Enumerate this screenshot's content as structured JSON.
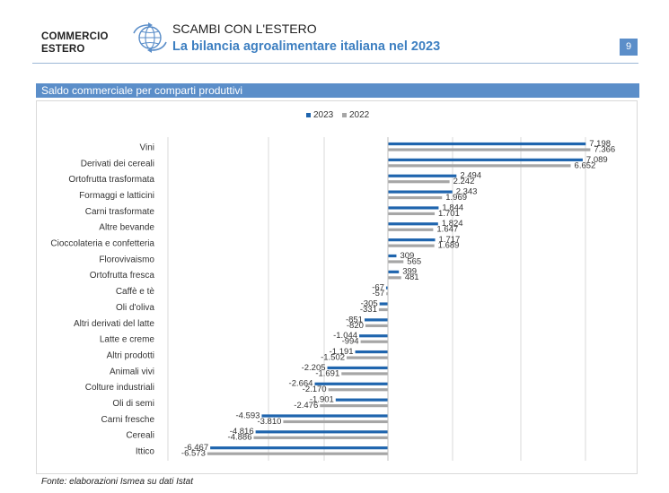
{
  "header": {
    "brand_line1": "COMMERCIO",
    "brand_line2": "ESTERO",
    "section": "SCAMBI CON L'ESTERO",
    "title": "La bilancia agroalimentare italiana nel 2023",
    "page_number": "9",
    "logo_icon": "globe-arrows-icon"
  },
  "banner": "Saldo commerciale per comparti produttivi",
  "source": "Fonte: elaborazioni Ismea su dati Istat",
  "colors": {
    "accent": "#3d7fc1",
    "banner": "#5b8ec9",
    "series_2023": "#1f65ae",
    "series_2022": "#a6a6a6"
  },
  "chart_data": {
    "type": "bar",
    "orientation": "horizontal",
    "legend_position": "top-center",
    "grid": true,
    "xlim": [
      -7000,
      10000
    ],
    "categories": [
      "Vini",
      "Derivati dei cereali",
      "Ortofrutta trasformata",
      "Formaggi e latticini",
      "Carni trasformate",
      "Altre bevande",
      "Cioccolateria e confetteria",
      "Florovivaismo",
      "Ortofrutta fresca",
      "Caffè e tè",
      "Oli d'oliva",
      "Altri derivati del latte",
      "Latte e creme",
      "Altri prodotti",
      "Animali vivi",
      "Colture industriali",
      "Oli di semi",
      "Carni fresche",
      "Cereali",
      "Ittico"
    ],
    "series": [
      {
        "name": "2023",
        "color": "#1f65ae",
        "values": [
          7198,
          7089,
          2494,
          2343,
          1844,
          1824,
          1717,
          309,
          399,
          -67,
          -305,
          -851,
          -1044,
          -1191,
          -2205,
          -2664,
          -1901,
          -4593,
          -4816,
          -6467
        ],
        "labels": [
          "7.198",
          "7.089",
          "2.494",
          "2.343",
          "1.844",
          "1.824",
          "1.717",
          "309",
          "399",
          "-67",
          "-305",
          "-851",
          "-1.044",
          "-1.191",
          "-2.205",
          "-2.664",
          "-1.901",
          "-4.593",
          "-4.816",
          "-6.467"
        ]
      },
      {
        "name": "2022",
        "color": "#a6a6a6",
        "values": [
          7366,
          6652,
          2242,
          1969,
          1701,
          1647,
          1689,
          565,
          481,
          -57,
          -331,
          -820,
          -994,
          -1502,
          -1691,
          -2170,
          -2476,
          -3810,
          -4886,
          -6573
        ],
        "labels": [
          "7.366",
          "6.652",
          "2.242",
          "1.969",
          "1.701",
          "1.647",
          "1.689",
          "565",
          "481",
          "-57",
          "-331",
          "-820",
          "-994",
          "-1.502",
          "-1.691",
          "-2.170",
          "-2.476",
          "-3.810",
          "-4.886",
          "-6.573"
        ]
      }
    ]
  }
}
